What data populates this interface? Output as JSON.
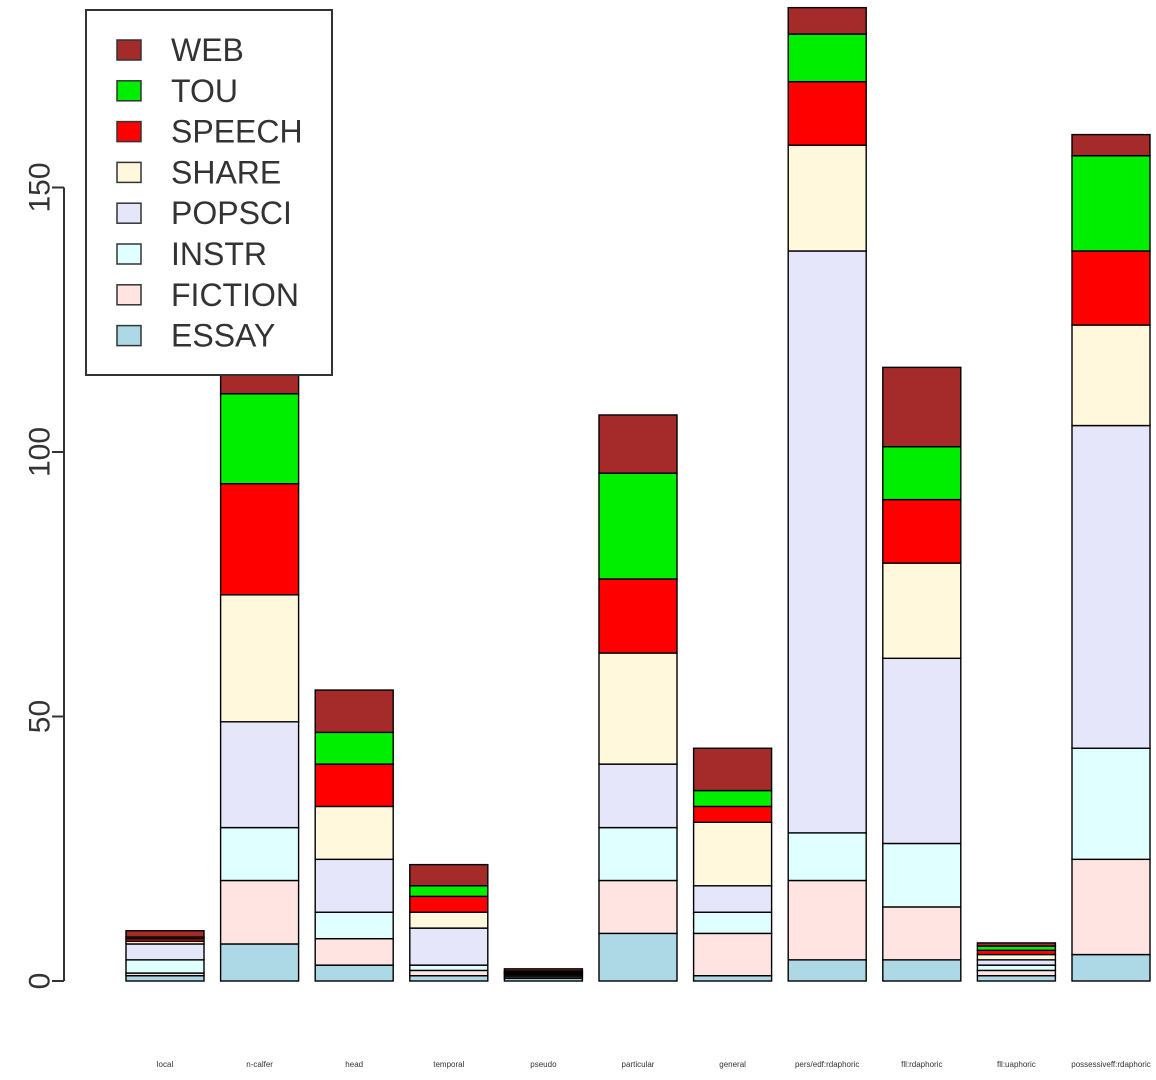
{
  "chart_data": {
    "type": "bar",
    "stacked": true,
    "title": "",
    "xlabel": "",
    "ylabel": "",
    "ylim": [
      0,
      185
    ],
    "yticks": [
      0,
      50,
      100,
      150
    ],
    "grid": false,
    "legend_position": "top-left",
    "categories": [
      "local",
      "n-calfer",
      "head",
      "temporal",
      "pseudo",
      "particular",
      "general",
      "pers/edf:rdaphoric",
      "fll:rdaphoric",
      "fll:uaphoric",
      "possessiveff:rdaphoric"
    ],
    "series": [
      {
        "name": "ESSAY",
        "color": "#add8e6",
        "values": [
          1,
          7,
          3,
          1,
          0.5,
          9,
          1,
          4,
          4,
          1,
          5
        ]
      },
      {
        "name": "FICTION",
        "color": "#ffe4e1",
        "values": [
          0.5,
          12,
          5,
          1,
          0.3,
          10,
          8,
          15,
          10,
          1,
          18
        ]
      },
      {
        "name": "INSTR",
        "color": "#e0ffff",
        "values": [
          2.5,
          10,
          5,
          1,
          0.3,
          10,
          4,
          9,
          12,
          1,
          21
        ]
      },
      {
        "name": "POPSCI",
        "color": "#e6e6fa",
        "values": [
          3,
          20,
          10,
          7,
          0.2,
          12,
          5,
          110,
          35,
          1,
          61
        ]
      },
      {
        "name": "SHARE",
        "color": "#fff8dc",
        "values": [
          0.5,
          24,
          10,
          3,
          0.2,
          21,
          12,
          20,
          18,
          1,
          19
        ]
      },
      {
        "name": "SPEECH",
        "color": "#ff0000",
        "values": [
          0.5,
          21,
          8,
          3,
          0.2,
          14,
          3,
          12,
          12,
          0.8,
          14
        ]
      },
      {
        "name": "TOU",
        "color": "#00ee00",
        "values": [
          0.3,
          17,
          6,
          2,
          0.2,
          20,
          3,
          9,
          10,
          0.8,
          18
        ]
      },
      {
        "name": "WEB",
        "color": "#a52a2a",
        "values": [
          1.2,
          5,
          8,
          4,
          0.4,
          11,
          8,
          5,
          15,
          0.6,
          4
        ]
      }
    ],
    "legend_order": [
      "WEB",
      "TOU",
      "SPEECH",
      "SHARE",
      "POPSCI",
      "INSTR",
      "FICTION",
      "ESSAY"
    ]
  }
}
